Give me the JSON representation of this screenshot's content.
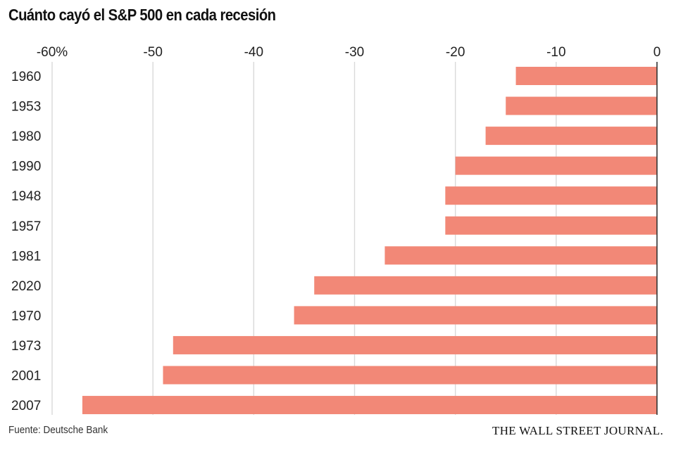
{
  "header": {
    "title": "Cuánto cayó el S&P 500 en cada recesión"
  },
  "footer": {
    "source": "Fuente: Deutsche Bank",
    "brand": "THE WALL STREET JOURNAL."
  },
  "colors": {
    "bar": "#f28877",
    "grid": "#d9d9d9",
    "zero_axis": "#333333"
  },
  "chart_data": {
    "type": "bar",
    "orientation": "horizontal",
    "title": "Cuánto cayó el S&P 500 en cada recesión",
    "xlabel": "",
    "ylabel": "",
    "xlim": [
      -60,
      0
    ],
    "x_ticks": [
      -60,
      -50,
      -40,
      -30,
      -20,
      -10,
      0
    ],
    "x_tick_labels": [
      "-60%",
      "-50",
      "-40",
      "-30",
      "-20",
      "-10",
      "0"
    ],
    "x_axis_position": "top",
    "grid": true,
    "legend": "none",
    "categories": [
      "1960",
      "1953",
      "1980",
      "1990",
      "1948",
      "1957",
      "1981",
      "2020",
      "1970",
      "1973",
      "2001",
      "2007"
    ],
    "values": [
      -14,
      -15,
      -17,
      -20,
      -21,
      -21,
      -27,
      -34,
      -36,
      -48,
      -49,
      -57
    ]
  }
}
